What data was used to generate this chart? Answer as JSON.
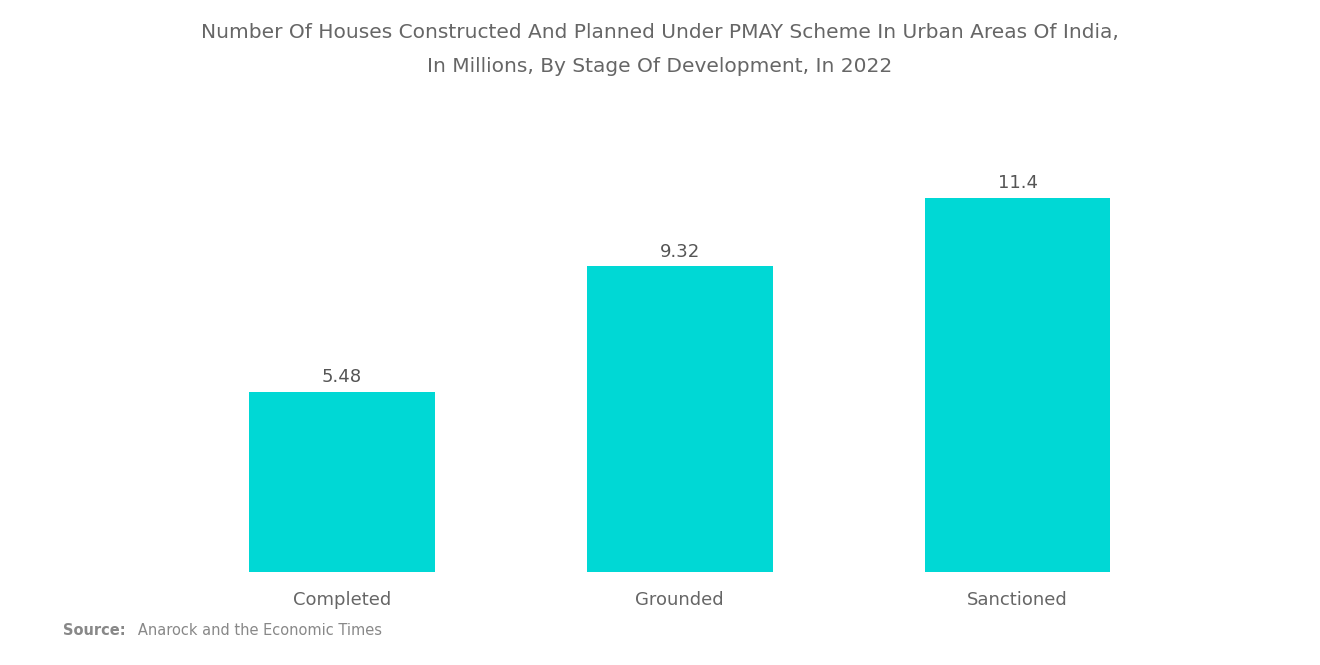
{
  "title_line1": "Number Of Houses Constructed And Planned Under PMAY Scheme In Urban Areas Of India,",
  "title_line2": "In Millions, By Stage Of Development, In 2022",
  "categories": [
    "Completed",
    "Grounded",
    "Sanctioned"
  ],
  "values": [
    5.48,
    9.32,
    11.4
  ],
  "bar_color": "#00D8D5",
  "value_labels": [
    "5.48",
    "9.32",
    "11.4"
  ],
  "source_bold": "Source:",
  "source_text": "   Anarock and the Economic Times",
  "background_color": "#ffffff",
  "title_color": "#666666",
  "label_color": "#666666",
  "value_color": "#555555",
  "title_fontsize": 14.5,
  "label_fontsize": 13,
  "value_fontsize": 13,
  "ylim": [
    0,
    14
  ],
  "bar_width": 0.55
}
